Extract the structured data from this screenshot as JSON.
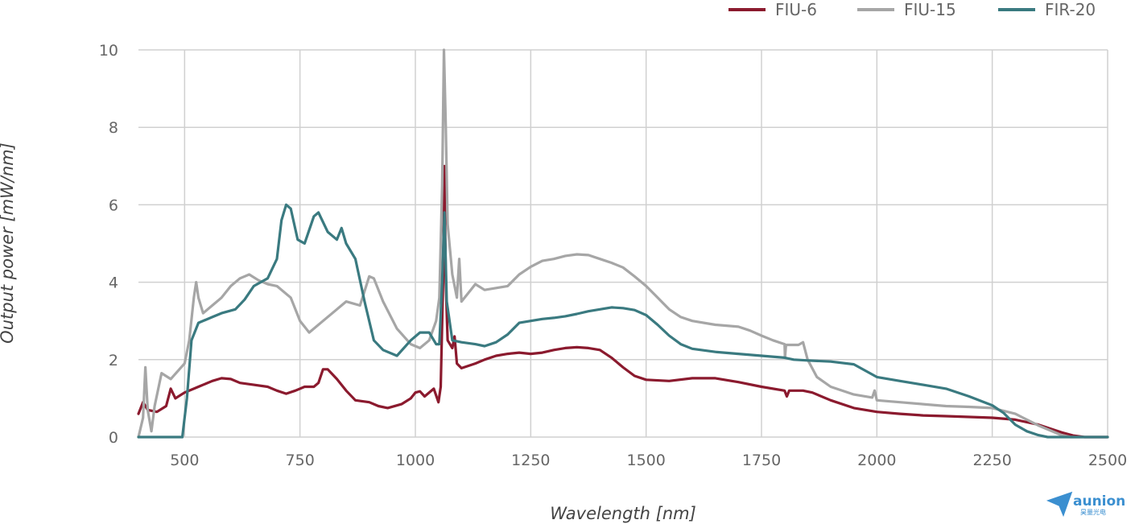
{
  "chart_data": {
    "type": "line",
    "xlabel": "Wavelength [nm]",
    "ylabel": "Output power [mW/nm]",
    "xlim": [
      400,
      2500
    ],
    "ylim": [
      0,
      10
    ],
    "x_ticks": [
      500,
      750,
      1000,
      1250,
      1500,
      1750,
      2000,
      2250,
      2500
    ],
    "y_ticks": [
      0,
      2,
      4,
      6,
      8,
      10
    ],
    "grid": true,
    "legend_position": "top-right",
    "series": [
      {
        "name": "FIU-6",
        "color": "#8b1a2e",
        "points": [
          [
            400,
            0.6
          ],
          [
            410,
            0.9
          ],
          [
            420,
            0.7
          ],
          [
            440,
            0.65
          ],
          [
            460,
            0.8
          ],
          [
            470,
            1.25
          ],
          [
            480,
            1.0
          ],
          [
            500,
            1.15
          ],
          [
            530,
            1.3
          ],
          [
            560,
            1.45
          ],
          [
            580,
            1.52
          ],
          [
            600,
            1.5
          ],
          [
            620,
            1.4
          ],
          [
            650,
            1.35
          ],
          [
            680,
            1.3
          ],
          [
            700,
            1.2
          ],
          [
            720,
            1.12
          ],
          [
            740,
            1.2
          ],
          [
            760,
            1.3
          ],
          [
            780,
            1.3
          ],
          [
            790,
            1.4
          ],
          [
            800,
            1.75
          ],
          [
            810,
            1.75
          ],
          [
            830,
            1.5
          ],
          [
            850,
            1.2
          ],
          [
            870,
            0.95
          ],
          [
            900,
            0.9
          ],
          [
            920,
            0.8
          ],
          [
            940,
            0.75
          ],
          [
            970,
            0.85
          ],
          [
            990,
            1.0
          ],
          [
            1000,
            1.15
          ],
          [
            1010,
            1.18
          ],
          [
            1020,
            1.05
          ],
          [
            1040,
            1.25
          ],
          [
            1050,
            0.9
          ],
          [
            1055,
            1.3
          ],
          [
            1060,
            4.0
          ],
          [
            1063,
            7.0
          ],
          [
            1066,
            4.0
          ],
          [
            1070,
            2.5
          ],
          [
            1080,
            2.3
          ],
          [
            1085,
            2.6
          ],
          [
            1090,
            1.9
          ],
          [
            1100,
            1.78
          ],
          [
            1130,
            1.9
          ],
          [
            1150,
            2.0
          ],
          [
            1175,
            2.1
          ],
          [
            1200,
            2.15
          ],
          [
            1225,
            2.18
          ],
          [
            1250,
            2.15
          ],
          [
            1275,
            2.18
          ],
          [
            1300,
            2.25
          ],
          [
            1325,
            2.3
          ],
          [
            1350,
            2.32
          ],
          [
            1375,
            2.3
          ],
          [
            1400,
            2.25
          ],
          [
            1425,
            2.05
          ],
          [
            1450,
            1.8
          ],
          [
            1475,
            1.58
          ],
          [
            1500,
            1.48
          ],
          [
            1550,
            1.45
          ],
          [
            1600,
            1.52
          ],
          [
            1650,
            1.52
          ],
          [
            1700,
            1.42
          ],
          [
            1750,
            1.3
          ],
          [
            1800,
            1.2
          ],
          [
            1805,
            1.05
          ],
          [
            1810,
            1.2
          ],
          [
            1840,
            1.2
          ],
          [
            1860,
            1.15
          ],
          [
            1900,
            0.95
          ],
          [
            1950,
            0.75
          ],
          [
            2000,
            0.65
          ],
          [
            2050,
            0.6
          ],
          [
            2100,
            0.56
          ],
          [
            2150,
            0.54
          ],
          [
            2200,
            0.52
          ],
          [
            2250,
            0.5
          ],
          [
            2300,
            0.45
          ],
          [
            2350,
            0.32
          ],
          [
            2400,
            0.12
          ],
          [
            2425,
            0.04
          ],
          [
            2450,
            0.0
          ],
          [
            2500,
            0.0
          ]
        ]
      },
      {
        "name": "FIU-15",
        "color": "#a6a6a6",
        "points": [
          [
            400,
            0.0
          ],
          [
            410,
            0.5
          ],
          [
            415,
            1.8
          ],
          [
            420,
            0.7
          ],
          [
            428,
            0.15
          ],
          [
            435,
            0.8
          ],
          [
            450,
            1.65
          ],
          [
            470,
            1.5
          ],
          [
            500,
            1.9
          ],
          [
            510,
            2.5
          ],
          [
            520,
            3.6
          ],
          [
            525,
            4.0
          ],
          [
            530,
            3.6
          ],
          [
            540,
            3.2
          ],
          [
            560,
            3.4
          ],
          [
            580,
            3.6
          ],
          [
            600,
            3.9
          ],
          [
            620,
            4.1
          ],
          [
            640,
            4.2
          ],
          [
            660,
            4.05
          ],
          [
            680,
            3.95
          ],
          [
            700,
            3.9
          ],
          [
            730,
            3.6
          ],
          [
            750,
            3.0
          ],
          [
            770,
            2.7
          ],
          [
            800,
            3.0
          ],
          [
            830,
            3.3
          ],
          [
            850,
            3.5
          ],
          [
            880,
            3.4
          ],
          [
            900,
            4.15
          ],
          [
            910,
            4.1
          ],
          [
            930,
            3.5
          ],
          [
            960,
            2.8
          ],
          [
            990,
            2.4
          ],
          [
            1010,
            2.3
          ],
          [
            1030,
            2.5
          ],
          [
            1045,
            3.0
          ],
          [
            1052,
            3.6
          ],
          [
            1058,
            6.5
          ],
          [
            1062,
            10.0
          ],
          [
            1066,
            8.0
          ],
          [
            1070,
            5.5
          ],
          [
            1080,
            4.2
          ],
          [
            1090,
            3.6
          ],
          [
            1095,
            4.6
          ],
          [
            1100,
            3.5
          ],
          [
            1120,
            3.8
          ],
          [
            1130,
            3.95
          ],
          [
            1150,
            3.8
          ],
          [
            1175,
            3.85
          ],
          [
            1200,
            3.9
          ],
          [
            1225,
            4.2
          ],
          [
            1250,
            4.4
          ],
          [
            1275,
            4.55
          ],
          [
            1300,
            4.6
          ],
          [
            1325,
            4.68
          ],
          [
            1350,
            4.72
          ],
          [
            1375,
            4.7
          ],
          [
            1400,
            4.6
          ],
          [
            1425,
            4.5
          ],
          [
            1450,
            4.38
          ],
          [
            1475,
            4.15
          ],
          [
            1500,
            3.9
          ],
          [
            1525,
            3.6
          ],
          [
            1550,
            3.3
          ],
          [
            1575,
            3.1
          ],
          [
            1600,
            3.0
          ],
          [
            1650,
            2.9
          ],
          [
            1700,
            2.85
          ],
          [
            1725,
            2.75
          ],
          [
            1750,
            2.62
          ],
          [
            1775,
            2.5
          ],
          [
            1800,
            2.4
          ],
          [
            1801,
            2.05
          ],
          [
            1803,
            2.38
          ],
          [
            1830,
            2.38
          ],
          [
            1840,
            2.45
          ],
          [
            1850,
            2.0
          ],
          [
            1870,
            1.55
          ],
          [
            1900,
            1.3
          ],
          [
            1950,
            1.1
          ],
          [
            1990,
            1.02
          ],
          [
            1995,
            1.2
          ],
          [
            2000,
            0.95
          ],
          [
            2050,
            0.9
          ],
          [
            2100,
            0.85
          ],
          [
            2150,
            0.8
          ],
          [
            2200,
            0.78
          ],
          [
            2250,
            0.75
          ],
          [
            2300,
            0.6
          ],
          [
            2350,
            0.3
          ],
          [
            2400,
            0.05
          ],
          [
            2420,
            0.0
          ],
          [
            2500,
            0.0
          ]
        ]
      },
      {
        "name": "FIR-20",
        "color": "#3a7a80",
        "points": [
          [
            400,
            0.0
          ],
          [
            495,
            0.0
          ],
          [
            505,
            1.0
          ],
          [
            515,
            2.5
          ],
          [
            530,
            2.95
          ],
          [
            560,
            3.1
          ],
          [
            580,
            3.2
          ],
          [
            610,
            3.3
          ],
          [
            630,
            3.55
          ],
          [
            650,
            3.9
          ],
          [
            680,
            4.1
          ],
          [
            700,
            4.6
          ],
          [
            710,
            5.6
          ],
          [
            720,
            6.0
          ],
          [
            730,
            5.9
          ],
          [
            745,
            5.1
          ],
          [
            760,
            5.0
          ],
          [
            780,
            5.7
          ],
          [
            790,
            5.8
          ],
          [
            810,
            5.3
          ],
          [
            830,
            5.1
          ],
          [
            840,
            5.4
          ],
          [
            850,
            5.0
          ],
          [
            870,
            4.6
          ],
          [
            890,
            3.5
          ],
          [
            910,
            2.5
          ],
          [
            930,
            2.25
          ],
          [
            960,
            2.1
          ],
          [
            990,
            2.5
          ],
          [
            1010,
            2.7
          ],
          [
            1030,
            2.7
          ],
          [
            1045,
            2.4
          ],
          [
            1052,
            2.4
          ],
          [
            1058,
            4.0
          ],
          [
            1063,
            5.8
          ],
          [
            1068,
            3.5
          ],
          [
            1080,
            2.5
          ],
          [
            1100,
            2.45
          ],
          [
            1130,
            2.4
          ],
          [
            1150,
            2.35
          ],
          [
            1175,
            2.45
          ],
          [
            1200,
            2.65
          ],
          [
            1225,
            2.95
          ],
          [
            1250,
            3.0
          ],
          [
            1275,
            3.05
          ],
          [
            1300,
            3.08
          ],
          [
            1325,
            3.12
          ],
          [
            1350,
            3.18
          ],
          [
            1375,
            3.25
          ],
          [
            1400,
            3.3
          ],
          [
            1425,
            3.35
          ],
          [
            1450,
            3.33
          ],
          [
            1475,
            3.28
          ],
          [
            1500,
            3.15
          ],
          [
            1525,
            2.9
          ],
          [
            1550,
            2.62
          ],
          [
            1575,
            2.4
          ],
          [
            1600,
            2.28
          ],
          [
            1650,
            2.2
          ],
          [
            1700,
            2.15
          ],
          [
            1750,
            2.1
          ],
          [
            1800,
            2.05
          ],
          [
            1820,
            2.0
          ],
          [
            1850,
            1.98
          ],
          [
            1900,
            1.95
          ],
          [
            1950,
            1.88
          ],
          [
            2000,
            1.55
          ],
          [
            2050,
            1.45
          ],
          [
            2100,
            1.35
          ],
          [
            2150,
            1.25
          ],
          [
            2200,
            1.05
          ],
          [
            2250,
            0.82
          ],
          [
            2275,
            0.62
          ],
          [
            2300,
            0.32
          ],
          [
            2325,
            0.15
          ],
          [
            2350,
            0.05
          ],
          [
            2370,
            0.0
          ],
          [
            2500,
            0.0
          ]
        ]
      }
    ]
  },
  "logo": {
    "name": "aunion",
    "subtitle": "昊量光电",
    "color": "#3b8fd0"
  }
}
